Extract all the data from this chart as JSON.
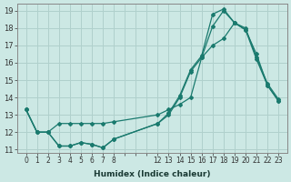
{
  "xlabel": "Humidex (Indice chaleur)",
  "bg_color": "#cce8e4",
  "grid_color": "#b0d0cc",
  "line_color": "#1a7a6e",
  "ylim": [
    10.8,
    19.4
  ],
  "yticks": [
    11,
    12,
    13,
    14,
    15,
    16,
    17,
    18,
    19
  ],
  "x_labels": [
    "0",
    "1",
    "2",
    "3",
    "4",
    "5",
    "6",
    "7",
    "8",
    "",
    "",
    "",
    "12",
    "13",
    "14",
    "15",
    "16",
    "17",
    "18",
    "19",
    "20",
    "21",
    "22",
    "23"
  ],
  "x_positions": [
    0,
    1,
    2,
    3,
    4,
    5,
    6,
    7,
    8,
    9,
    10,
    11,
    12,
    13,
    14,
    15,
    16,
    17,
    18,
    19,
    20,
    21,
    22,
    23
  ],
  "line1_x_idx": [
    0,
    1,
    2,
    3,
    4,
    5,
    6,
    7,
    8,
    12,
    13,
    14,
    15,
    16,
    17,
    18,
    19,
    20,
    21,
    22,
    23
  ],
  "line1_y": [
    13.3,
    12.0,
    12.0,
    11.2,
    11.2,
    11.4,
    11.3,
    11.1,
    11.6,
    12.5,
    13.0,
    14.0,
    15.5,
    16.3,
    18.1,
    19.0,
    18.3,
    18.0,
    16.3,
    14.8,
    13.9
  ],
  "line2_x_idx": [
    0,
    1,
    2,
    3,
    4,
    5,
    6,
    7,
    8,
    12,
    13,
    14,
    15,
    16,
    17,
    18,
    19,
    20,
    21,
    22,
    23
  ],
  "line2_y": [
    13.3,
    12.0,
    12.0,
    11.2,
    11.2,
    11.4,
    11.3,
    11.1,
    11.6,
    12.5,
    13.1,
    14.1,
    15.6,
    16.4,
    18.8,
    19.1,
    18.3,
    17.9,
    16.2,
    14.7,
    13.8
  ],
  "line3_x_idx": [
    0,
    1,
    2,
    3,
    4,
    5,
    6,
    7,
    8,
    12,
    13,
    14,
    15,
    16,
    17,
    18,
    19,
    20,
    21,
    22,
    23
  ],
  "line3_y": [
    13.3,
    12.0,
    12.0,
    12.5,
    12.5,
    12.5,
    12.5,
    12.5,
    12.6,
    13.0,
    13.3,
    13.6,
    14.0,
    16.3,
    17.0,
    17.4,
    18.3,
    17.9,
    16.5,
    14.7,
    13.8
  ],
  "xlabel_fontsize": 6.5,
  "tick_fontsize": 5.5,
  "ytick_fontsize": 6.0
}
